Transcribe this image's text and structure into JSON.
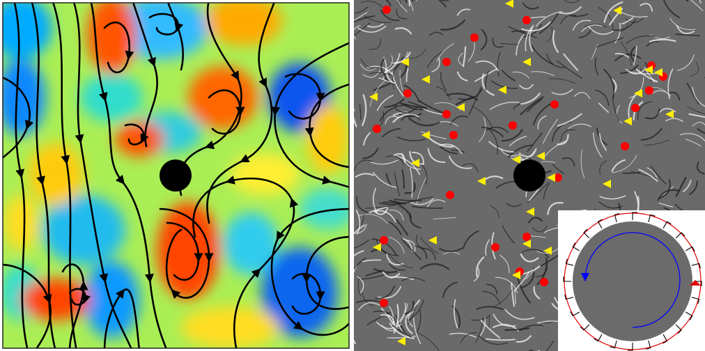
{
  "figure": {
    "left_panel": {
      "kind": "vorticity-field-with-streamlines",
      "colormap": [
        "#0033cc",
        "#00aaff",
        "#33ddcc",
        "#aaee55",
        "#ffee33",
        "#ffaa00",
        "#ff4400",
        "#cc1100"
      ],
      "streamline_color": "#000000",
      "obstacle_color": "#000000"
    },
    "right_panel": {
      "kind": "line-integral-convolution-texture",
      "texture_colors": [
        "#1a1a1a",
        "#ffffff"
      ],
      "plus_defect_marker": "red-dot",
      "plus_defect_color": "#ff0000",
      "minus_defect_marker": "yellow-triangle",
      "minus_defect_color": "#ffee00",
      "obstacle_color": "#000000"
    },
    "inset": {
      "disk_color": "#6b6b6b",
      "inner_arrow_color": "#0000ff",
      "outer_ring_color": "#dd0000",
      "tick_color": "#000000",
      "inner_arrow_icon": "counterclockwise-arrow-icon",
      "outer_arrow_icon": "clockwise-arrow-icon"
    }
  }
}
